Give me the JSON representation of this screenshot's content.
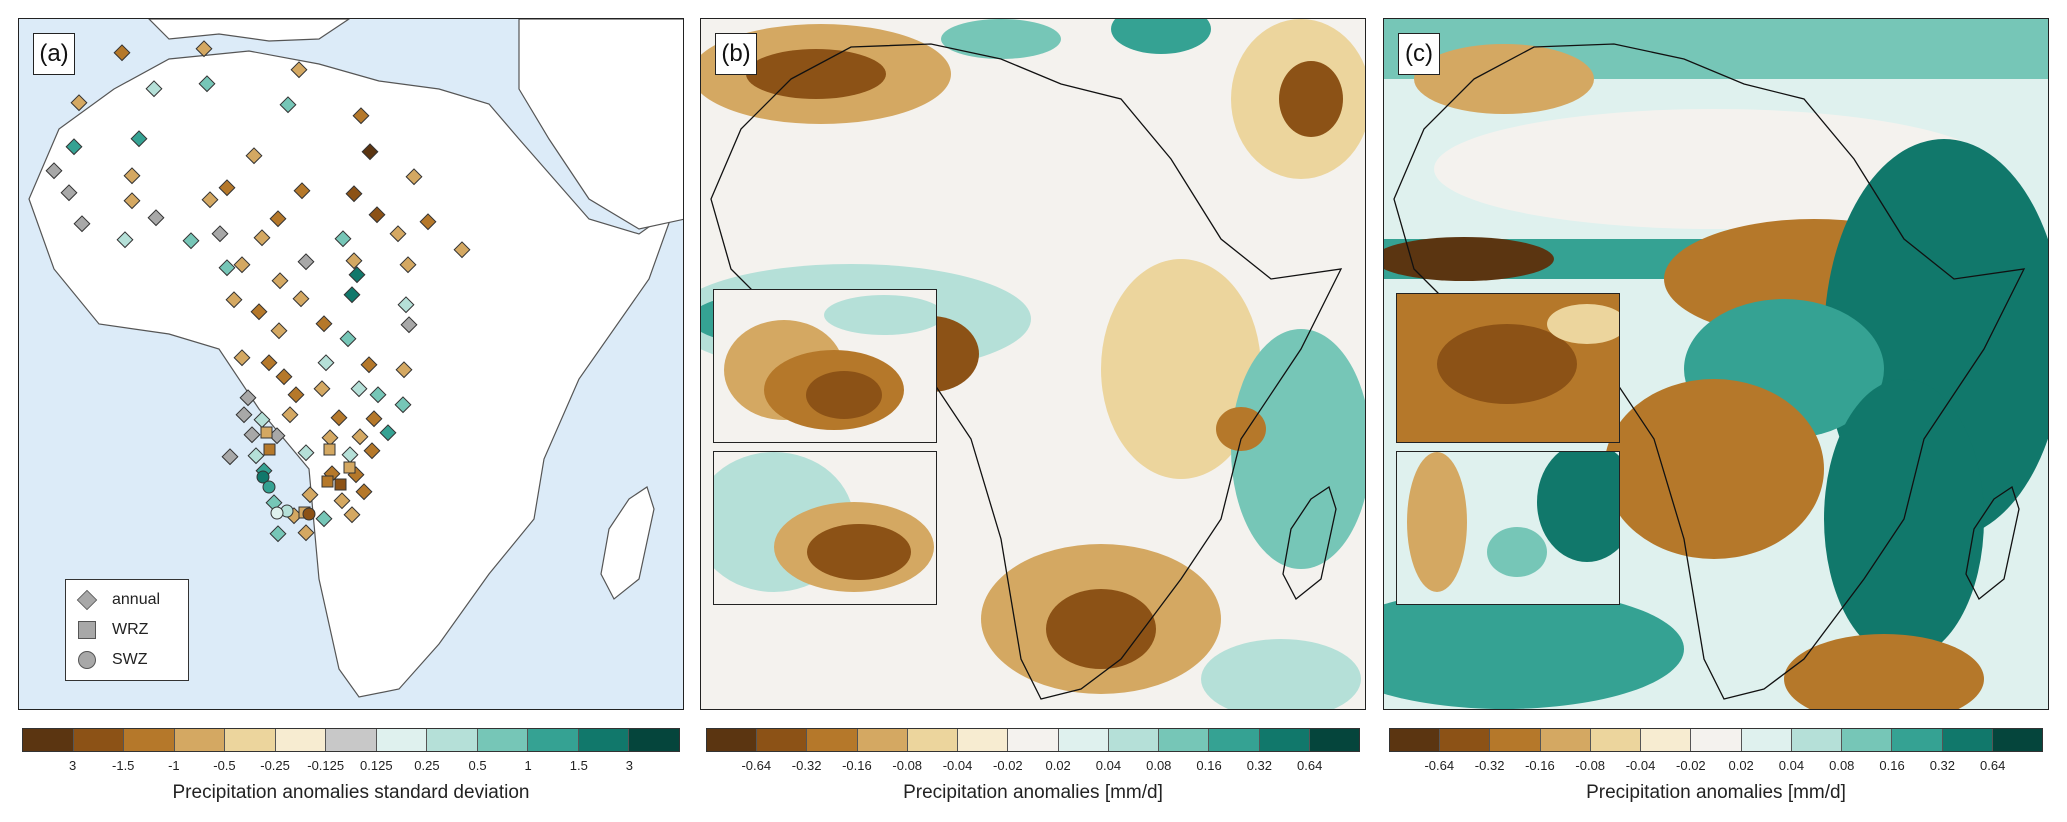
{
  "panels": {
    "a": {
      "label": "(a)"
    },
    "b": {
      "label": "(b)"
    },
    "c": {
      "label": "(c)"
    }
  },
  "legend": {
    "items": [
      {
        "label": "annual",
        "marker": "diamond"
      },
      {
        "label": "WRZ",
        "marker": "square"
      },
      {
        "label": "SWZ",
        "marker": "circle"
      }
    ]
  },
  "colorbars": {
    "a": {
      "title": "Precipitation anomalies standard deviation",
      "ticks": [
        "3",
        "-1.5",
        "-1",
        "-0.5",
        "-0.25",
        "-0.125",
        "0.125",
        "0.25",
        "0.5",
        "1",
        "1.5",
        "3"
      ],
      "colors": [
        "#5b3511",
        "#8c5216",
        "#b5782a",
        "#d4a862",
        "#ecd59d",
        "#f7ecd1",
        "#c8c8c8",
        "#dff1ee",
        "#b5e0d8",
        "#76c6b7",
        "#35a293",
        "#11786b",
        "#05453c"
      ]
    },
    "b": {
      "title": "Precipitation anomalies [mm/d]",
      "ticks": [
        "-0.64",
        "-0.32",
        "-0.16",
        "-0.08",
        "-0.04",
        "-0.02",
        "0.02",
        "0.04",
        "0.08",
        "0.16",
        "0.32",
        "0.64"
      ],
      "colors": [
        "#5b3511",
        "#8c5216",
        "#b5782a",
        "#d4a862",
        "#ecd59d",
        "#f7ecd1",
        "#f4f2ee",
        "#dff1ee",
        "#b5e0d8",
        "#76c6b7",
        "#35a293",
        "#11786b",
        "#05453c"
      ]
    },
    "c": {
      "title": "Precipitation anomalies [mm/d]",
      "ticks": [
        "-0.64",
        "-0.32",
        "-0.16",
        "-0.08",
        "-0.04",
        "-0.02",
        "0.02",
        "0.04",
        "0.08",
        "0.16",
        "0.32",
        "0.64"
      ],
      "colors": [
        "#5b3511",
        "#8c5216",
        "#b5782a",
        "#d4a862",
        "#ecd59d",
        "#f7ecd1",
        "#f4f2ee",
        "#dff1ee",
        "#b5e0d8",
        "#76c6b7",
        "#35a293",
        "#11786b",
        "#05453c"
      ]
    }
  }
}
